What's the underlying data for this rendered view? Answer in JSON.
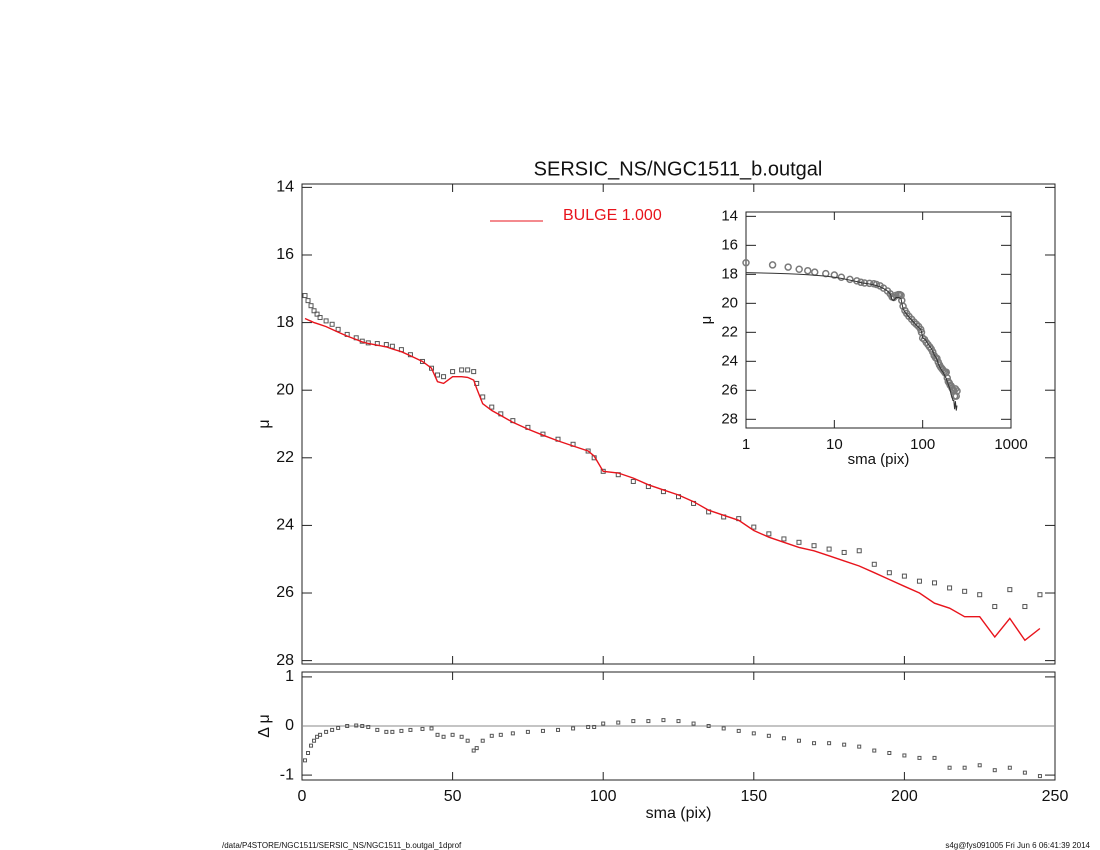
{
  "chart_data": [
    {
      "type": "profile",
      "title": "SERSIC_NS/NGC1511_b.outgal",
      "y_label": "μ",
      "x_label": "sma (pix)",
      "x": [
        1,
        2,
        3,
        4,
        5,
        6,
        8,
        10,
        12,
        15,
        18,
        20,
        22,
        25,
        28,
        30,
        33,
        36,
        40,
        43,
        45,
        47,
        50,
        53,
        55,
        57,
        58,
        60,
        63,
        66,
        70,
        75,
        80,
        85,
        90,
        95,
        97,
        100,
        105,
        110,
        115,
        120,
        125,
        130,
        135,
        140,
        145,
        150,
        155,
        160,
        165,
        170,
        175,
        180,
        185,
        190,
        195,
        200,
        205,
        210,
        215,
        220,
        225,
        230,
        235,
        240,
        245
      ],
      "series": [
        {
          "marker": "square",
          "color": "#555555",
          "values": [
            17.2,
            17.35,
            17.5,
            17.65,
            17.75,
            17.85,
            17.95,
            18.05,
            18.2,
            18.35,
            18.45,
            18.55,
            18.6,
            18.62,
            18.65,
            18.7,
            18.8,
            18.95,
            19.15,
            19.35,
            19.55,
            19.6,
            19.45,
            19.4,
            19.4,
            19.45,
            19.8,
            20.2,
            20.5,
            20.7,
            20.9,
            21.1,
            21.3,
            21.45,
            21.6,
            21.8,
            22.0,
            22.4,
            22.5,
            22.7,
            22.85,
            23.0,
            23.15,
            23.35,
            23.6,
            23.75,
            23.8,
            24.05,
            24.25,
            24.4,
            24.5,
            24.6,
            24.7,
            24.8,
            24.75,
            25.15,
            25.4,
            25.5,
            25.65,
            25.7,
            25.85,
            25.95,
            26.05,
            26.4,
            25.9,
            26.4,
            26.05
          ]
        },
        {
          "name": "BULGE  1.000",
          "marker": "line",
          "color": "#e8141c",
          "values": [
            17.88,
            17.92,
            17.96,
            18.0,
            18.03,
            18.06,
            18.12,
            18.2,
            18.28,
            18.4,
            18.5,
            18.57,
            18.62,
            18.67,
            18.72,
            18.78,
            18.86,
            18.98,
            19.15,
            19.35,
            19.75,
            19.8,
            19.6,
            19.6,
            19.62,
            19.7,
            19.95,
            20.4,
            20.6,
            20.75,
            20.95,
            21.15,
            21.33,
            21.5,
            21.65,
            21.8,
            21.95,
            22.4,
            22.45,
            22.6,
            22.8,
            22.95,
            23.1,
            23.3,
            23.55,
            23.7,
            23.85,
            24.15,
            24.35,
            24.5,
            24.65,
            24.75,
            24.9,
            25.05,
            25.2,
            25.4,
            25.6,
            25.8,
            26.0,
            26.3,
            26.45,
            26.7,
            26.7,
            27.3,
            26.75,
            27.4,
            27.05
          ]
        }
      ],
      "xlim": [
        0,
        250
      ],
      "xticks": [
        0,
        50,
        100,
        150,
        200,
        250
      ],
      "ylim": [
        13.9,
        28.1
      ],
      "yticks": [
        14,
        16,
        18,
        20,
        22,
        24,
        26,
        28
      ],
      "y_reversed": true,
      "legend": "top-center"
    },
    {
      "type": "residual",
      "y_label": "Δ μ",
      "color": "#555555",
      "values": [
        -0.7,
        -0.55,
        -0.4,
        -0.3,
        -0.22,
        -0.18,
        -0.12,
        -0.08,
        -0.04,
        0,
        0.01,
        0,
        -0.02,
        -0.08,
        -0.12,
        -0.12,
        -0.1,
        -0.08,
        -0.06,
        -0.05,
        -0.18,
        -0.22,
        -0.18,
        -0.22,
        -0.3,
        -0.5,
        -0.45,
        -0.3,
        -0.2,
        -0.18,
        -0.15,
        -0.12,
        -0.1,
        -0.08,
        -0.05,
        -0.02,
        -0.02,
        0.05,
        0.07,
        0.1,
        0.1,
        0.12,
        0.1,
        0.05,
        0,
        -0.05,
        -0.1,
        -0.15,
        -0.2,
        -0.25,
        -0.3,
        -0.35,
        -0.35,
        -0.38,
        -0.42,
        -0.5,
        -0.55,
        -0.6,
        -0.65,
        -0.65,
        -0.85,
        -0.85,
        -0.8,
        -0.9,
        -0.85,
        -0.95,
        -1.02
      ],
      "ylim": [
        -1.1,
        1.1
      ],
      "yticks": [
        -1,
        0,
        1
      ],
      "zero_line": true
    },
    {
      "type": "inset",
      "y_label": "μ",
      "x_label": "sma (pix)",
      "x_log": true,
      "colors": [
        "#7a7a7a",
        "#333333"
      ],
      "xlim": [
        1,
        1000
      ],
      "xticks": [
        1,
        10,
        100,
        1000
      ],
      "ylim": [
        13.7,
        28.6
      ],
      "yticks": [
        14,
        16,
        18,
        20,
        22,
        24,
        26,
        28
      ],
      "y_reversed": true
    }
  ],
  "footer": {
    "left": "/data/P4STORE/NGC1511/SERSIC_NS/NGC1511_b.outgal_1dprof",
    "right": "s4g@fys091005  Fri Jun  6 06:41:39 2014"
  }
}
